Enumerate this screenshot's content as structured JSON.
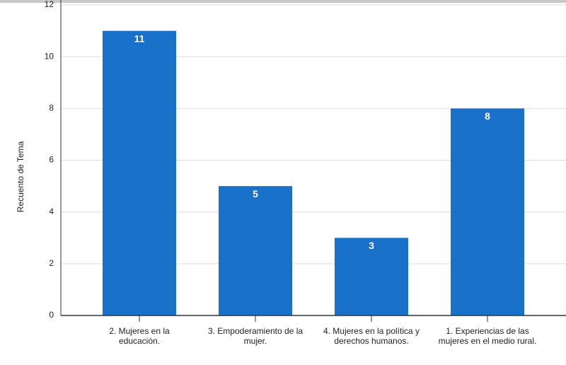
{
  "chart_data": {
    "type": "bar",
    "y_label": "Recuento de Tema",
    "categories": [
      "2. Mujeres en la educación.",
      "3. Empoderamiento de la mujer.",
      "4. Mujeres en la política y derechos humanos.",
      "1. Experiencias de las mujeres en el medio rural."
    ],
    "values": [
      11,
      5,
      3,
      8
    ],
    "color": "#1a71c9",
    "ylim": [
      0,
      12
    ],
    "yticks": [
      0,
      2,
      4,
      6,
      8,
      10,
      12
    ],
    "grid": true
  }
}
